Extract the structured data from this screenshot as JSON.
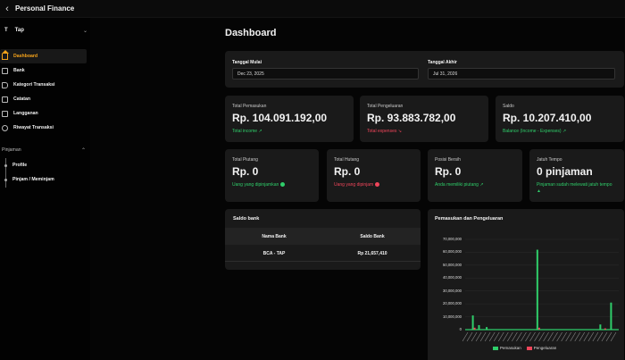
{
  "app": {
    "title": "Personal Finance"
  },
  "workspace": {
    "initial": "T",
    "name": "Tap"
  },
  "nav": {
    "items": [
      {
        "label": "Dashboard",
        "icon": "home-icon",
        "active": true
      },
      {
        "label": "Bank",
        "icon": "bank-icon"
      },
      {
        "label": "Kategori Transaksi",
        "icon": "tag-icon"
      },
      {
        "label": "Catatan",
        "icon": "note-icon"
      },
      {
        "label": "Langganan",
        "icon": "subscription-icon"
      },
      {
        "label": "Riwayat Transaksi",
        "icon": "history-icon"
      }
    ]
  },
  "loans": {
    "header": "Pinjaman",
    "items": [
      {
        "label": "Profile"
      },
      {
        "label": "Pinjam / Meminjam"
      }
    ]
  },
  "page": {
    "title": "Dashboard"
  },
  "dates": {
    "start_label": "Tanggal Mulai",
    "start_value": "Dec 23, 2025",
    "end_label": "Tanggal Akhir",
    "end_value": "Jul 31, 2026"
  },
  "metrics": {
    "income": {
      "label": "Total Pemasukan",
      "value": "Rp. 104.091.192,00",
      "sub": "Total income"
    },
    "expense": {
      "label": "Total Pengeluaran",
      "value": "Rp. 93.883.782,00",
      "sub": "Total expenses"
    },
    "balance": {
      "label": "Saldo",
      "value": "Rp. 10.207.410,00",
      "sub": "Balance (Income - Expenses)"
    },
    "receivable": {
      "label": "Total Piutang",
      "value": "Rp. 0",
      "sub": "Uang yang dipinjamkan"
    },
    "debt": {
      "label": "Total Hutang",
      "value": "Rp. 0",
      "sub": "Uang yang dipinjam"
    },
    "net": {
      "label": "Posisi Bersih",
      "value": "Rp. 0",
      "sub": "Anda memiliki piutang"
    },
    "due": {
      "label": "Jatuh Tempo",
      "value": "0 pinjaman",
      "sub": "Pinjaman sudah melewati jatuh tempo"
    }
  },
  "bank_table": {
    "title": "Saldo bank",
    "headers": [
      "Nama Bank",
      "Saldo Bank"
    ],
    "rows": [
      {
        "name": "BCA - TAP",
        "balance": "Rp 21,657,410"
      }
    ]
  },
  "colors": {
    "accent": "#f6a31a",
    "income": "#2fce6a",
    "expense": "#f0455a",
    "card": "#1a1a1a"
  },
  "chart_data": {
    "type": "bar",
    "title": "Pemasukan dan Pengeluaran",
    "y_ticks": [
      "70,000,000",
      "60,000,000",
      "50,000,000",
      "40,000,000",
      "30,000,000",
      "20,000,000",
      "10,000,000",
      "0"
    ],
    "ylim": [
      0,
      70000000
    ],
    "legend_position": "bottom",
    "series": [
      {
        "name": "Pemasukan",
        "color": "#2fce6a",
        "points": [
          [
            0.05,
            11000000
          ],
          [
            0.09,
            3500000
          ],
          [
            0.14,
            2000000
          ],
          [
            0.47,
            62000000
          ],
          [
            0.88,
            4000000
          ],
          [
            0.95,
            21000000
          ]
        ]
      },
      {
        "name": "Pengeluaran",
        "color": "#f0455a",
        "points": [
          [
            0.05,
            1500000
          ],
          [
            0.47,
            1500000
          ],
          [
            0.9,
            1000000
          ]
        ]
      }
    ]
  }
}
